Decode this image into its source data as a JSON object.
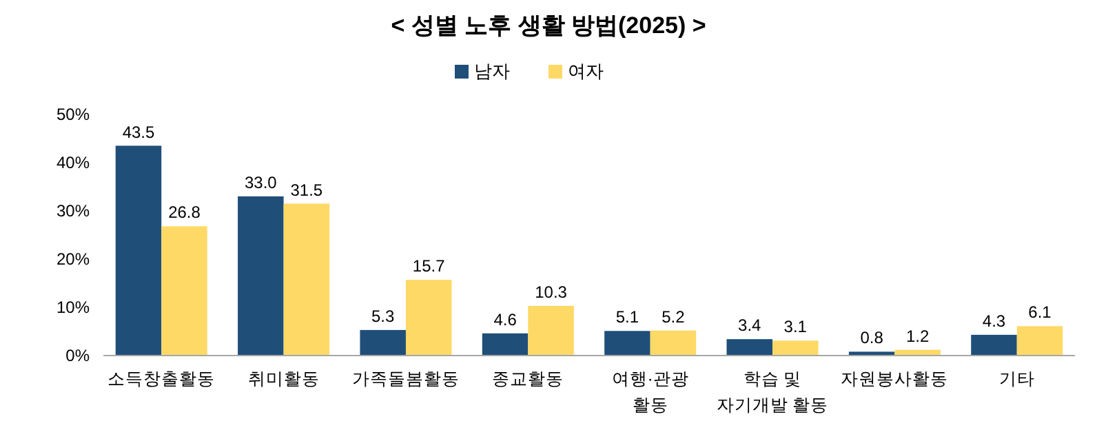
{
  "chart_data": {
    "type": "bar",
    "title": "< 성별 노후 생활 방법(2025) >",
    "categories": [
      "소득창출활동",
      "취미활동",
      "가족돌봄활동",
      "종교활동",
      "여행·관광\n활동",
      "학습 및\n자기개발 활동",
      "자원봉사활동",
      "기타"
    ],
    "series": [
      {
        "name": "남자",
        "color": "#1f4e79",
        "values": [
          43.5,
          33.0,
          5.3,
          4.6,
          5.1,
          3.4,
          0.8,
          4.3
        ],
        "value_labels": [
          "43.5",
          "33.0",
          "5.3",
          "4.6",
          "5.1",
          "3.4",
          "0.8",
          "4.3"
        ]
      },
      {
        "name": "여자",
        "color": "#ffd966",
        "values": [
          26.8,
          31.5,
          15.7,
          10.3,
          5.2,
          3.1,
          1.2,
          6.1
        ],
        "value_labels": [
          "26.8",
          "31.5",
          "15.7",
          "10.3",
          "5.2",
          "3.1",
          "1.2",
          "6.1"
        ]
      }
    ],
    "ylim": [
      0,
      50
    ],
    "yticks": [
      {
        "value": 0,
        "label": "0%"
      },
      {
        "value": 10,
        "label": "10%"
      },
      {
        "value": 20,
        "label": "20%"
      },
      {
        "value": 30,
        "label": "30%"
      },
      {
        "value": 40,
        "label": "40%"
      },
      {
        "value": 50,
        "label": "50%"
      }
    ],
    "legend": "top",
    "grid": false
  }
}
